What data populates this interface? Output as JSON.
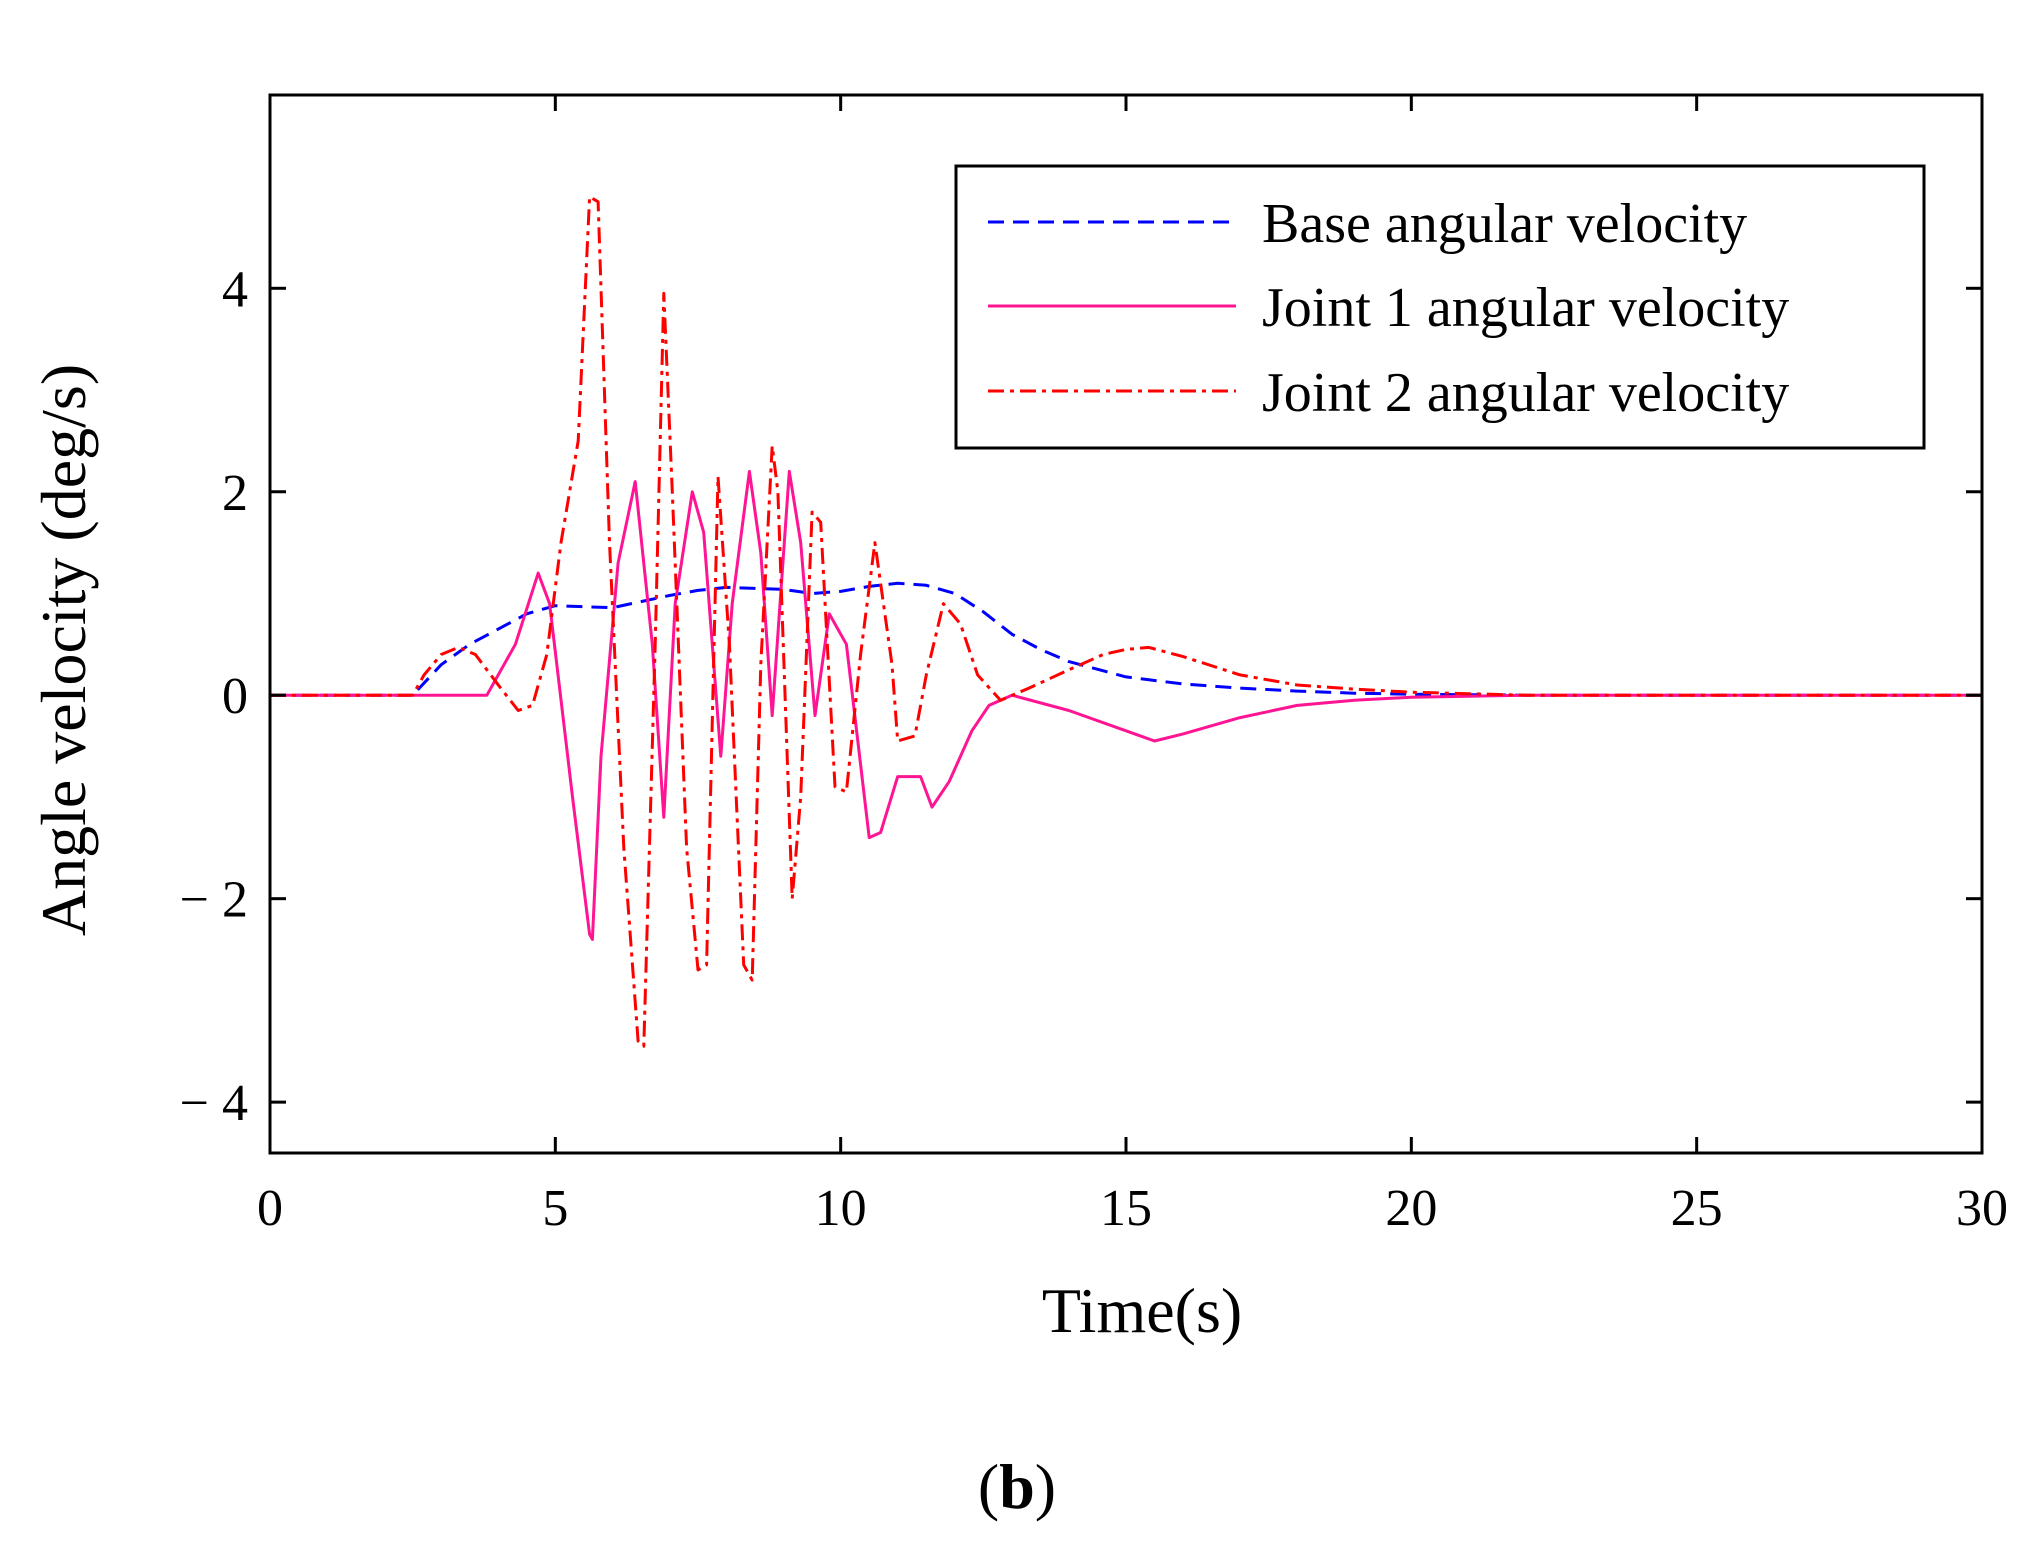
{
  "chart_data": {
    "type": "line",
    "xlabel": "Time(s)",
    "ylabel": "Angle velocity (deg/s)",
    "xlim": [
      0,
      30
    ],
    "ylim": [
      -4.5,
      5.9
    ],
    "xticks": [
      0,
      5,
      10,
      15,
      20,
      25,
      30
    ],
    "xtick_labels": [
      "0",
      "5",
      "10",
      "15",
      "20",
      "25",
      "30"
    ],
    "yticks": [
      -4,
      -2,
      0,
      2,
      4
    ],
    "ytick_labels": [
      "− 4",
      "− 2",
      "0",
      "2",
      "4"
    ],
    "grid": false,
    "legend_position": "top-right",
    "caption_open": "(",
    "caption_letter": "b",
    "caption_close": ")",
    "series": [
      {
        "name": "Base angular velocity",
        "color": "#0000ff",
        "style": "dashed",
        "x": [
          0,
          2.5,
          3,
          3.5,
          4,
          4.5,
          5,
          5.5,
          6,
          6.5,
          7,
          7.5,
          8,
          8.5,
          9,
          9.5,
          10,
          10.5,
          11,
          11.5,
          12,
          12.5,
          13,
          13.5,
          14,
          15,
          16,
          17,
          18,
          19,
          20,
          21,
          22,
          25,
          30
        ],
        "y": [
          0,
          0,
          0.3,
          0.5,
          0.65,
          0.8,
          0.88,
          0.87,
          0.86,
          0.92,
          0.98,
          1.03,
          1.06,
          1.05,
          1.04,
          1.0,
          1.02,
          1.07,
          1.1,
          1.08,
          1.0,
          0.82,
          0.6,
          0.45,
          0.33,
          0.18,
          0.11,
          0.07,
          0.04,
          0.02,
          0.01,
          0.005,
          0,
          0,
          0
        ]
      },
      {
        "name": "Joint 1 angular velocity",
        "color": "#ff1493",
        "style": "solid",
        "x": [
          0,
          2.5,
          3.8,
          4.3,
          4.7,
          4.9,
          5.3,
          5.6,
          5.65,
          5.8,
          6.1,
          6.4,
          6.7,
          6.9,
          7.1,
          7.4,
          7.6,
          7.9,
          8.1,
          8.4,
          8.6,
          8.8,
          9.1,
          9.3,
          9.55,
          9.8,
          10.1,
          10.5,
          10.7,
          11.0,
          11.4,
          11.6,
          11.9,
          12.3,
          12.6,
          13.0,
          14.0,
          15.0,
          15.5,
          16.0,
          17.0,
          18.0,
          19.0,
          20.0,
          22.0,
          30
        ],
        "y": [
          0,
          0,
          0,
          0.5,
          1.2,
          0.9,
          -1.0,
          -2.35,
          -2.4,
          -0.6,
          1.3,
          2.1,
          0.5,
          -1.2,
          0.9,
          2.0,
          1.6,
          -0.6,
          0.9,
          2.2,
          1.4,
          -0.2,
          2.2,
          1.5,
          -0.2,
          0.8,
          0.5,
          -1.4,
          -1.35,
          -0.8,
          -0.8,
          -1.1,
          -0.85,
          -0.35,
          -0.1,
          0.0,
          -0.15,
          -0.35,
          -0.45,
          -0.38,
          -0.22,
          -0.1,
          -0.05,
          -0.02,
          0,
          0
        ]
      },
      {
        "name": "Joint 2 angular velocity",
        "color": "#ff0000",
        "style": "dashdot",
        "x": [
          0,
          2.5,
          2.7,
          3.0,
          3.3,
          3.6,
          4.0,
          4.35,
          4.6,
          4.85,
          5.1,
          5.4,
          5.6,
          5.75,
          5.95,
          6.2,
          6.45,
          6.55,
          6.75,
          6.9,
          7.05,
          7.3,
          7.5,
          7.65,
          7.85,
          8.05,
          8.3,
          8.45,
          8.6,
          8.8,
          8.9,
          9.15,
          9.3,
          9.5,
          9.65,
          9.9,
          10.1,
          10.35,
          10.6,
          10.9,
          11.0,
          11.3,
          11.5,
          11.8,
          12.1,
          12.4,
          12.8,
          13.3,
          14.0,
          14.6,
          15.0,
          15.4,
          16.0,
          17.0,
          18.0,
          19.0,
          20.0,
          21.0,
          22.0,
          30
        ],
        "y": [
          0,
          0,
          0.2,
          0.4,
          0.47,
          0.4,
          0.1,
          -0.15,
          -0.1,
          0.4,
          1.5,
          2.5,
          4.9,
          4.85,
          1.5,
          -1.5,
          -3.4,
          -3.45,
          0.5,
          3.95,
          2.0,
          -1.5,
          -2.7,
          -2.65,
          2.15,
          0.5,
          -2.65,
          -2.8,
          0.3,
          2.45,
          2.0,
          -2.0,
          -1.0,
          1.8,
          1.7,
          -0.9,
          -0.95,
          0.4,
          1.5,
          0.3,
          -0.45,
          -0.4,
          0.2,
          0.9,
          0.7,
          0.2,
          -0.05,
          0.07,
          0.25,
          0.4,
          0.45,
          0.47,
          0.38,
          0.2,
          0.1,
          0.06,
          0.03,
          0.015,
          0,
          0
        ]
      }
    ]
  }
}
